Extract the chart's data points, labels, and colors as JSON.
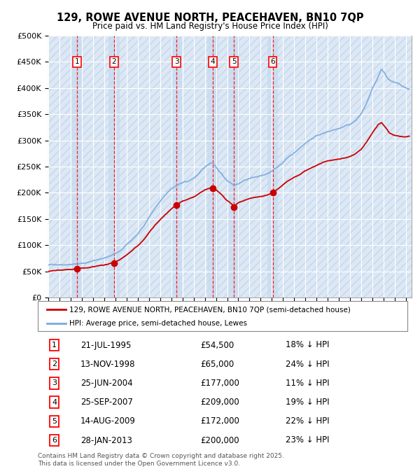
{
  "title": "129, ROWE AVENUE NORTH, PEACEHAVEN, BN10 7QP",
  "subtitle": "Price paid vs. HM Land Registry's House Price Index (HPI)",
  "transactions": [
    {
      "num": 1,
      "date_dec": 1995.55,
      "price": 54500,
      "label": "21-JUL-1995",
      "pct": "18% ↓ HPI"
    },
    {
      "num": 2,
      "date_dec": 1998.87,
      "price": 65000,
      "label": "13-NOV-1998",
      "pct": "24% ↓ HPI"
    },
    {
      "num": 3,
      "date_dec": 2004.48,
      "price": 177000,
      "label": "25-JUN-2004",
      "pct": "11% ↓ HPI"
    },
    {
      "num": 4,
      "date_dec": 2007.73,
      "price": 209000,
      "label": "25-SEP-2007",
      "pct": "19% ↓ HPI"
    },
    {
      "num": 5,
      "date_dec": 2009.62,
      "price": 172000,
      "label": "14-AUG-2009",
      "pct": "22% ↓ HPI"
    },
    {
      "num": 6,
      "date_dec": 2013.07,
      "price": 200000,
      "label": "28-JAN-2013",
      "pct": "23% ↓ HPI"
    }
  ],
  "hpi_color": "#7aaadd",
  "price_color": "#cc0000",
  "ylim": [
    0,
    500000
  ],
  "yticks": [
    0,
    50000,
    100000,
    150000,
    200000,
    250000,
    300000,
    350000,
    400000,
    450000,
    500000
  ],
  "xlim_start": 1993.0,
  "xlim_end": 2025.5,
  "footer_text": "Contains HM Land Registry data © Crown copyright and database right 2025.\nThis data is licensed under the Open Government Licence v3.0.",
  "legend_property_label": "129, ROWE AVENUE NORTH, PEACEHAVEN, BN10 7QP (semi-detached house)",
  "legend_hpi_label": "HPI: Average price, semi-detached house, Lewes",
  "hpi_knots": [
    [
      1993.0,
      62000
    ],
    [
      1993.5,
      63000
    ],
    [
      1994.0,
      64000
    ],
    [
      1994.5,
      65000
    ],
    [
      1995.0,
      66000
    ],
    [
      1995.5,
      66500
    ],
    [
      1996.0,
      68000
    ],
    [
      1996.5,
      70000
    ],
    [
      1997.0,
      73000
    ],
    [
      1997.5,
      76000
    ],
    [
      1998.0,
      79000
    ],
    [
      1998.5,
      82000
    ],
    [
      1999.0,
      86000
    ],
    [
      1999.5,
      93000
    ],
    [
      2000.0,
      102000
    ],
    [
      2000.5,
      112000
    ],
    [
      2001.0,
      123000
    ],
    [
      2001.5,
      137000
    ],
    [
      2002.0,
      155000
    ],
    [
      2002.5,
      172000
    ],
    [
      2003.0,
      185000
    ],
    [
      2003.5,
      197000
    ],
    [
      2004.0,
      208000
    ],
    [
      2004.5,
      216000
    ],
    [
      2005.0,
      220000
    ],
    [
      2005.5,
      222000
    ],
    [
      2006.0,
      228000
    ],
    [
      2006.5,
      238000
    ],
    [
      2007.0,
      248000
    ],
    [
      2007.5,
      257000
    ],
    [
      2007.73,
      258000
    ],
    [
      2008.0,
      250000
    ],
    [
      2008.5,
      237000
    ],
    [
      2009.0,
      224000
    ],
    [
      2009.5,
      218000
    ],
    [
      2009.62,
      216000
    ],
    [
      2010.0,
      220000
    ],
    [
      2010.5,
      228000
    ],
    [
      2011.0,
      232000
    ],
    [
      2011.5,
      235000
    ],
    [
      2012.0,
      237000
    ],
    [
      2012.5,
      240000
    ],
    [
      2013.0,
      245000
    ],
    [
      2013.5,
      252000
    ],
    [
      2014.0,
      262000
    ],
    [
      2014.5,
      273000
    ],
    [
      2015.0,
      281000
    ],
    [
      2015.5,
      290000
    ],
    [
      2016.0,
      300000
    ],
    [
      2016.5,
      308000
    ],
    [
      2017.0,
      315000
    ],
    [
      2017.5,
      320000
    ],
    [
      2018.0,
      322000
    ],
    [
      2018.5,
      325000
    ],
    [
      2019.0,
      328000
    ],
    [
      2019.5,
      332000
    ],
    [
      2020.0,
      335000
    ],
    [
      2020.5,
      342000
    ],
    [
      2021.0,
      355000
    ],
    [
      2021.5,
      375000
    ],
    [
      2022.0,
      400000
    ],
    [
      2022.5,
      420000
    ],
    [
      2022.8,
      435000
    ],
    [
      2023.0,
      430000
    ],
    [
      2023.3,
      420000
    ],
    [
      2023.5,
      415000
    ],
    [
      2024.0,
      410000
    ],
    [
      2024.5,
      405000
    ],
    [
      2025.0,
      400000
    ],
    [
      2025.3,
      398000
    ]
  ],
  "price_knots": [
    [
      1993.0,
      50000
    ],
    [
      1993.5,
      50500
    ],
    [
      1994.0,
      51000
    ],
    [
      1994.5,
      51500
    ],
    [
      1995.0,
      52000
    ],
    [
      1995.55,
      54500
    ],
    [
      1996.0,
      55000
    ],
    [
      1996.5,
      55500
    ],
    [
      1997.0,
      56500
    ],
    [
      1997.5,
      58000
    ],
    [
      1998.0,
      60000
    ],
    [
      1998.5,
      62000
    ],
    [
      1998.87,
      65000
    ],
    [
      1999.0,
      66000
    ],
    [
      1999.5,
      72000
    ],
    [
      2000.0,
      80000
    ],
    [
      2000.5,
      88000
    ],
    [
      2001.0,
      97000
    ],
    [
      2001.5,
      108000
    ],
    [
      2002.0,
      122000
    ],
    [
      2002.5,
      136000
    ],
    [
      2003.0,
      147000
    ],
    [
      2003.5,
      158000
    ],
    [
      2004.0,
      168000
    ],
    [
      2004.48,
      177000
    ],
    [
      2004.8,
      182000
    ],
    [
      2005.0,
      185000
    ],
    [
      2005.5,
      188000
    ],
    [
      2006.0,
      192000
    ],
    [
      2006.5,
      198000
    ],
    [
      2007.0,
      205000
    ],
    [
      2007.5,
      208000
    ],
    [
      2007.73,
      209000
    ],
    [
      2008.0,
      204000
    ],
    [
      2008.5,
      195000
    ],
    [
      2009.0,
      183000
    ],
    [
      2009.62,
      172000
    ],
    [
      2010.0,
      178000
    ],
    [
      2010.5,
      183000
    ],
    [
      2011.0,
      187000
    ],
    [
      2011.5,
      190000
    ],
    [
      2012.0,
      192000
    ],
    [
      2012.5,
      195000
    ],
    [
      2013.07,
      200000
    ],
    [
      2013.5,
      206000
    ],
    [
      2014.0,
      214000
    ],
    [
      2014.5,
      222000
    ],
    [
      2015.0,
      228000
    ],
    [
      2015.5,
      233000
    ],
    [
      2016.0,
      240000
    ],
    [
      2016.5,
      245000
    ],
    [
      2017.0,
      250000
    ],
    [
      2017.5,
      255000
    ],
    [
      2018.0,
      258000
    ],
    [
      2018.5,
      261000
    ],
    [
      2019.0,
      263000
    ],
    [
      2019.5,
      266000
    ],
    [
      2020.0,
      269000
    ],
    [
      2020.5,
      275000
    ],
    [
      2021.0,
      283000
    ],
    [
      2021.5,
      298000
    ],
    [
      2022.0,
      315000
    ],
    [
      2022.5,
      330000
    ],
    [
      2022.8,
      335000
    ],
    [
      2023.0,
      330000
    ],
    [
      2023.3,
      322000
    ],
    [
      2023.5,
      315000
    ],
    [
      2024.0,
      310000
    ],
    [
      2024.5,
      308000
    ],
    [
      2025.0,
      307000
    ],
    [
      2025.3,
      308000
    ]
  ]
}
